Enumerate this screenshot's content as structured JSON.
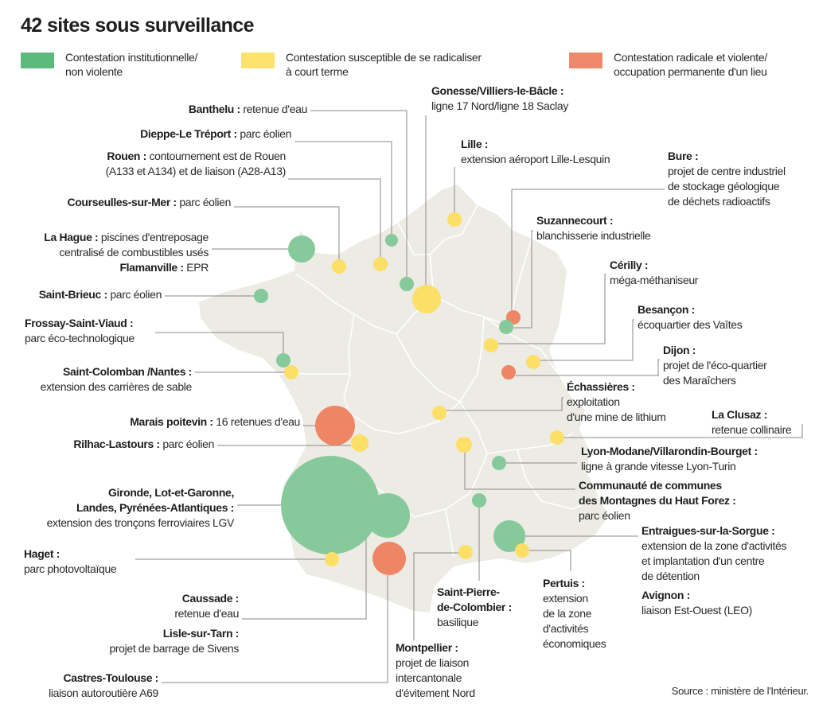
{
  "title": "42 sites sous surveillance",
  "legend": [
    {
      "lines": [
        "Contestation institutionnelle/",
        "non violente"
      ],
      "color": "#5cba7d"
    },
    {
      "lines": [
        "Contestation susceptible de se radicaliser",
        "à court terme"
      ],
      "color": "#fde36e"
    },
    {
      "lines": [
        "Contestation radicale et violente/",
        "occupation permanente d'un lieu"
      ],
      "color": "#ee8a6b"
    }
  ],
  "colors": {
    "green": "#86c99b",
    "yellow": "#fddf67",
    "red": "#ee8565",
    "land": "#ecebe4",
    "border": "#ffffff",
    "leader": "#8a8a8a"
  },
  "sites": [
    {
      "name": [
        "Banthelu :"
      ],
      "inline": true,
      "text": [
        "retenue d'eau"
      ],
      "category": "green"
    },
    {
      "name": [
        "Dieppe-Le Tréport :"
      ],
      "inline": true,
      "text": [
        "parc éolien"
      ],
      "category": "green"
    },
    {
      "name": [
        "Rouen :"
      ],
      "inline": true,
      "text": [
        "contournement est de Rouen",
        "(A133 et A134) et de liaison (A28-A13)"
      ],
      "category": "yellow"
    },
    {
      "name": [
        "Courseulles-sur-Mer :"
      ],
      "inline": true,
      "text": [
        "parc éolien"
      ],
      "category": "yellow"
    },
    {
      "name": [
        "La Hague :"
      ],
      "inline": true,
      "text": [
        "piscines d'entreposage",
        "centralisé de combustibles usés"
      ],
      "category": "green"
    },
    {
      "name": [
        "Flamanville :"
      ],
      "inline": true,
      "text": [
        "EPR"
      ],
      "category": "green"
    },
    {
      "name": [
        "Saint-Brieuc :"
      ],
      "inline": true,
      "text": [
        "parc éolien"
      ],
      "category": "green"
    },
    {
      "name": [
        "Frossay-Saint-Viaud :"
      ],
      "inline": false,
      "text": [
        "parc éco-technologique"
      ],
      "category": "green"
    },
    {
      "name": [
        "Saint-Colomban /Nantes :"
      ],
      "inline": false,
      "text": [
        "extension des carrières de sable"
      ],
      "category": "yellow"
    },
    {
      "name": [
        "Marais poitevin :"
      ],
      "inline": true,
      "text": [
        "16 retenues d'eau"
      ],
      "category": "red"
    },
    {
      "name": [
        "Rilhac-Lastours :"
      ],
      "inline": true,
      "text": [
        "parc éolien"
      ],
      "category": "yellow"
    },
    {
      "name": [
        "Gironde, Lot-et-Garonne,",
        "Landes, Pyrénées-Atlantiques :"
      ],
      "inline": false,
      "text": [
        "extension des tronçons ferroviaires LGV"
      ],
      "category": "green"
    },
    {
      "name": [
        "Haget :"
      ],
      "inline": false,
      "text": [
        "parc photovoltaïque"
      ],
      "category": "yellow"
    },
    {
      "name": [
        "Caussade :"
      ],
      "inline": false,
      "text": [
        "retenue d'eau"
      ],
      "category": "green"
    },
    {
      "name": [
        "Lisle-sur-Tarn :"
      ],
      "inline": false,
      "text": [
        "projet de barrage de Sivens"
      ],
      "category": "red"
    },
    {
      "name": [
        "Castres-Toulouse :"
      ],
      "inline": false,
      "text": [
        "liaison autoroutière A69"
      ],
      "category": "red"
    },
    {
      "name": [
        "Gonesse/Villiers-le-Bâcle :"
      ],
      "inline": false,
      "text": [
        "ligne 17 Nord/ligne 18 Saclay"
      ],
      "category": "yellow"
    },
    {
      "name": [
        "Lille :"
      ],
      "inline": false,
      "text": [
        "extension aéroport Lille-Lesquin"
      ],
      "category": "yellow"
    },
    {
      "name": [
        "Bure :"
      ],
      "inline": false,
      "text": [
        "projet de centre industriel",
        "de stockage géologique",
        "de déchets radioactifs"
      ],
      "category": "red"
    },
    {
      "name": [
        "Suzannecourt :"
      ],
      "inline": false,
      "text": [
        "blanchisserie industrielle"
      ],
      "category": "green"
    },
    {
      "name": [
        "Cérilly :"
      ],
      "inline": false,
      "text": [
        "méga-méthaniseur"
      ],
      "category": "yellow"
    },
    {
      "name": [
        "Besançon :"
      ],
      "inline": false,
      "text": [
        "écoquartier des Vaîtes"
      ],
      "category": "yellow"
    },
    {
      "name": [
        "Dijon :"
      ],
      "inline": false,
      "text": [
        "projet de l'éco-quartier",
        "des Maraîchers"
      ],
      "category": "red"
    },
    {
      "name": [
        "Échassières :"
      ],
      "inline": false,
      "text": [
        "exploitation",
        "d'une mine de lithium"
      ],
      "category": "yellow"
    },
    {
      "name": [
        "La Clusaz :"
      ],
      "inline": false,
      "text": [
        "retenue collinaire"
      ],
      "category": "yellow"
    },
    {
      "name": [
        "Lyon-Modane/Villarondin-Bourget :"
      ],
      "inline": false,
      "text": [
        "ligne à grande vitesse Lyon-Turin"
      ],
      "category": "green"
    },
    {
      "name": [
        "Communauté de communes",
        "des Montagnes du Haut Forez :"
      ],
      "inline": false,
      "text": [
        "parc éolien"
      ],
      "category": "yellow"
    },
    {
      "name": [
        "Entraigues-sur-la-Sorgue :"
      ],
      "inline": false,
      "text": [
        "extension de la zone d'activités",
        "et implantation d'un centre",
        "de détention"
      ],
      "category": "green"
    },
    {
      "name": [
        "Avignon :"
      ],
      "inline": false,
      "text": [
        "liaison Est-Ouest (LEO)"
      ],
      "category": "green"
    },
    {
      "name": [
        "Pertuis :"
      ],
      "inline": false,
      "text": [
        "extension",
        "de la zone",
        "d'activités",
        "économiques"
      ],
      "category": "yellow"
    },
    {
      "name": [
        "Saint-Pierre-",
        "de-Colombier :"
      ],
      "inline": false,
      "text": [
        "basilique"
      ],
      "category": "green"
    },
    {
      "name": [
        "Montpellier :"
      ],
      "inline": false,
      "text": [
        "projet de liaison",
        "intercantonale",
        "d'évitement Nord"
      ],
      "category": "yellow"
    }
  ],
  "source": "Source : ministère de l'Intérieur."
}
